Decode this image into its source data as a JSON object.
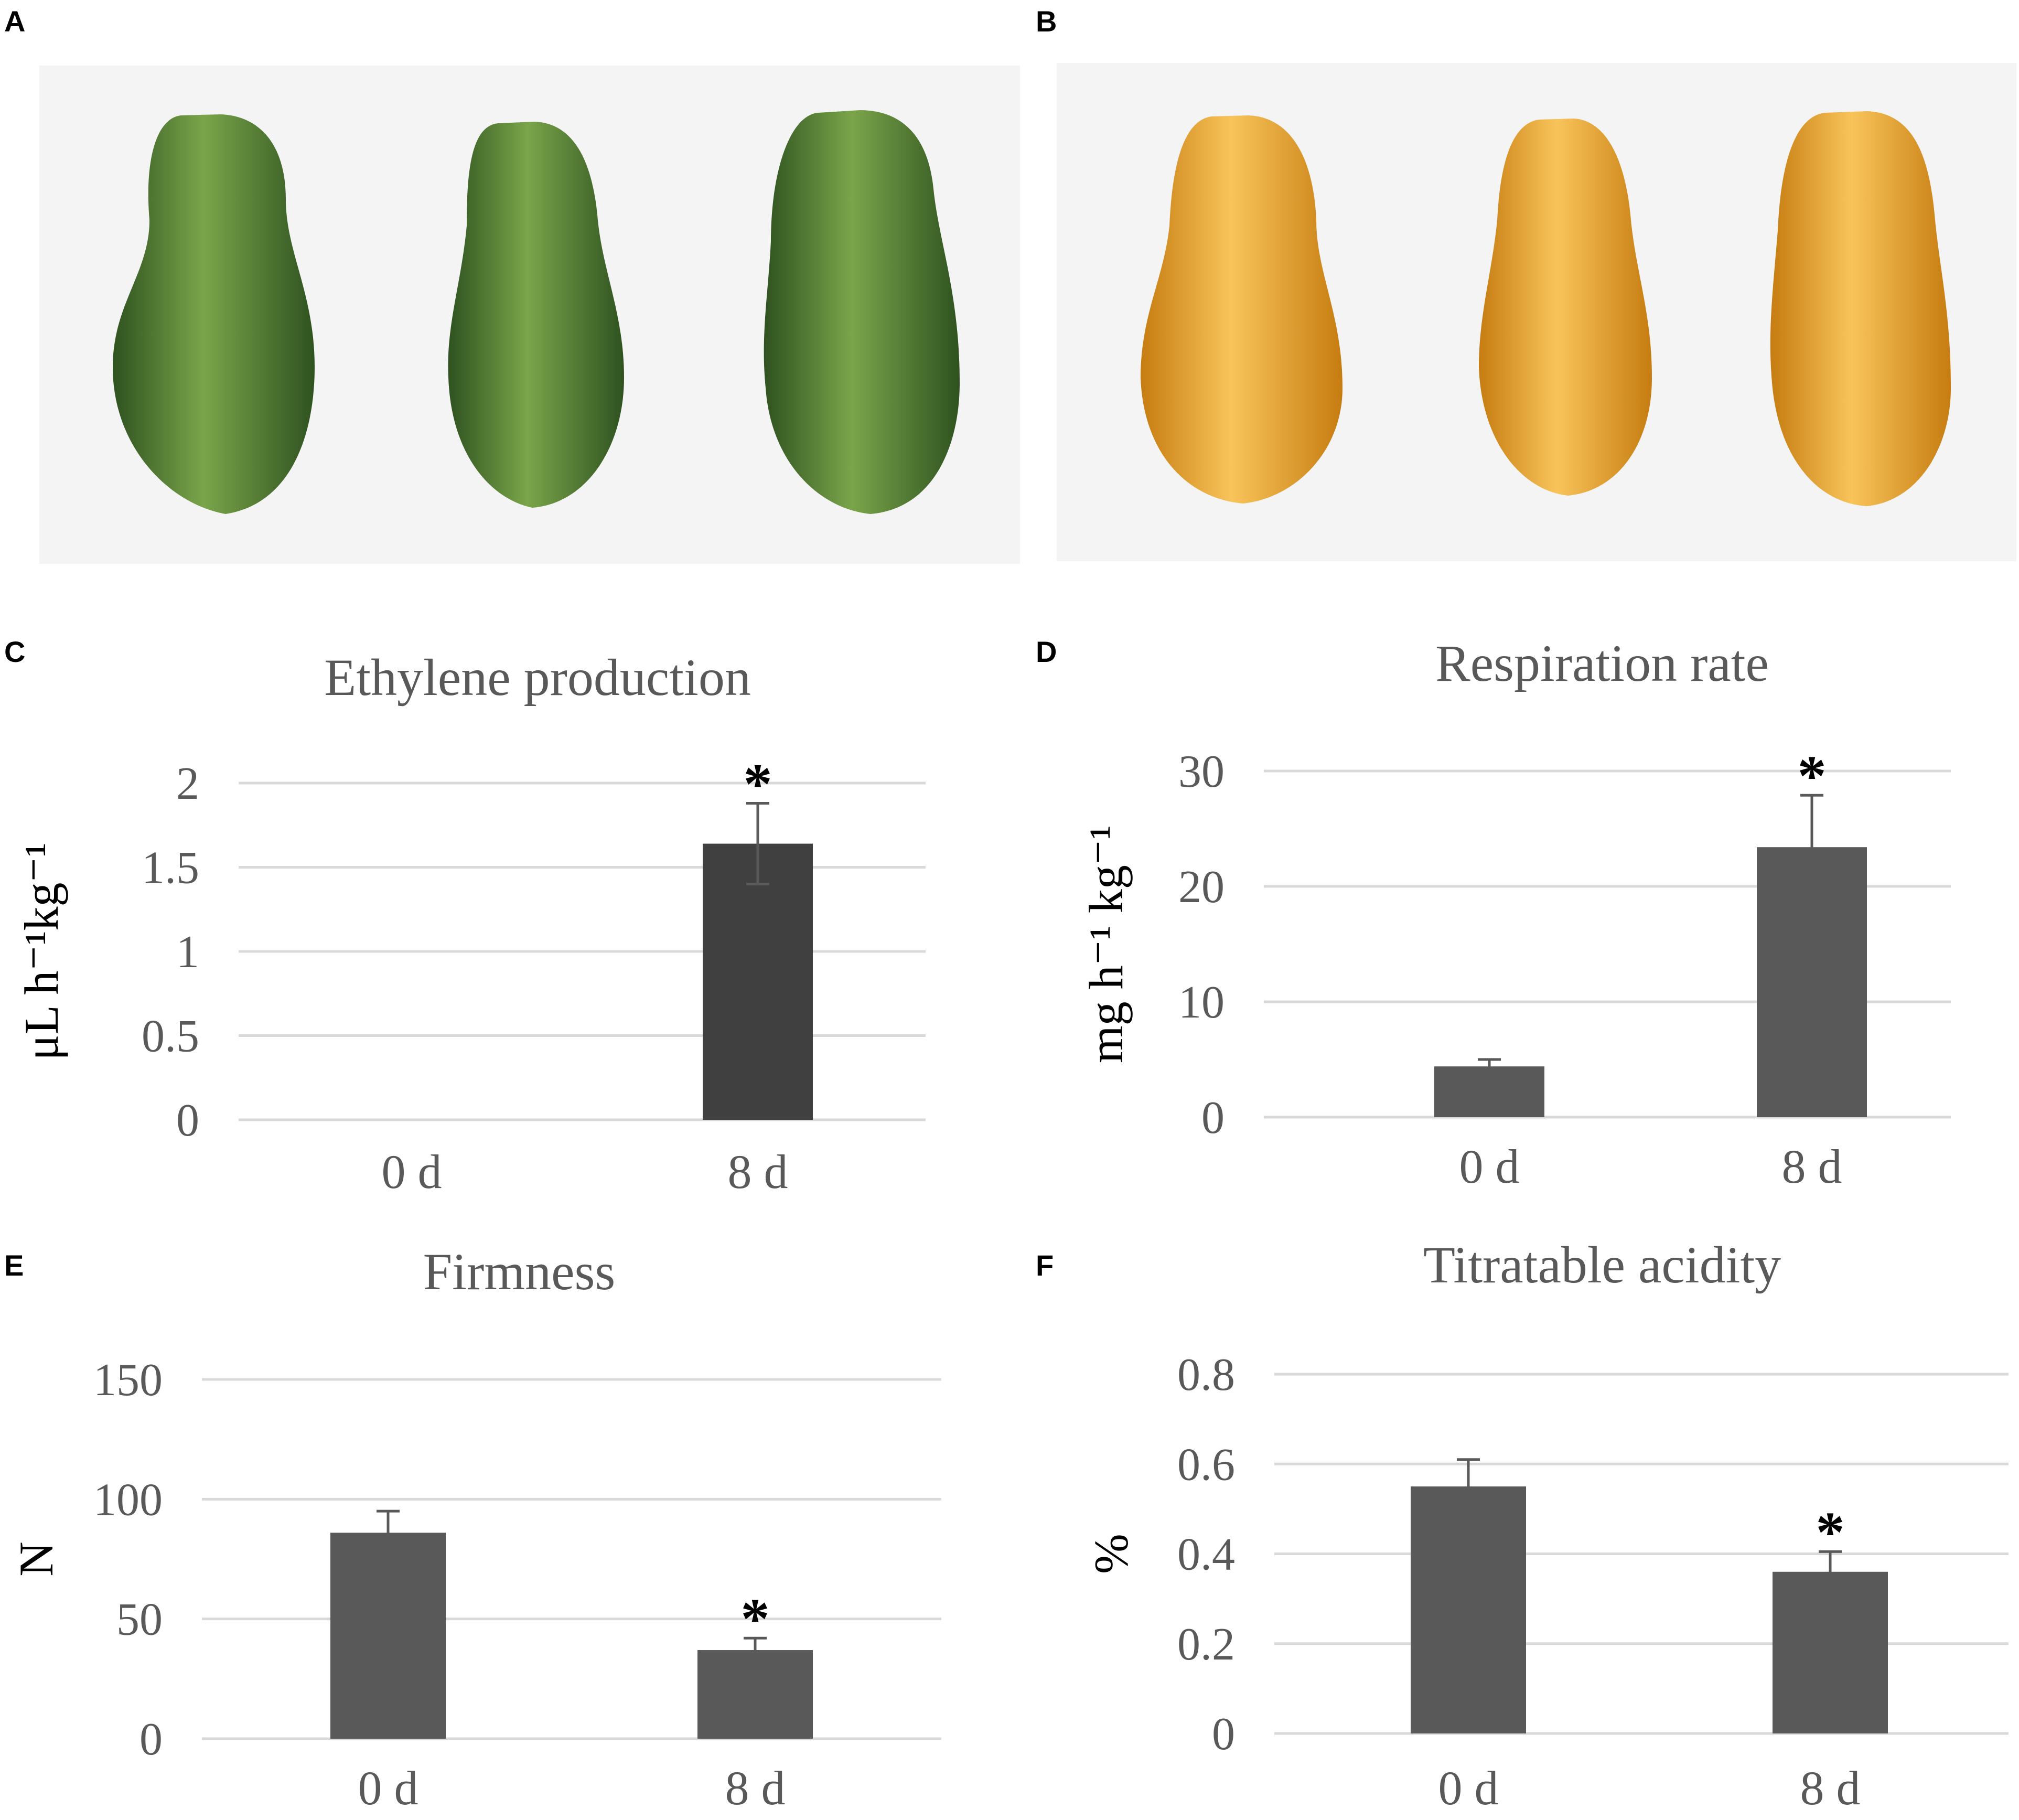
{
  "panels": {
    "a": "A",
    "b": "B",
    "c": "C",
    "d": "D",
    "e": "E",
    "f": "F"
  },
  "photos": {
    "a": {
      "fruit_color": "#4c7a2c",
      "fruit_highlight": "#7aa54a",
      "fruit_shadow": "#2f5220",
      "count": 3
    },
    "b": {
      "fruit_color": "#efa51c",
      "fruit_highlight": "#f8c45a",
      "fruit_shadow": "#c67c10",
      "count": 3
    }
  },
  "colors": {
    "bar": "#595959",
    "bar_dark": "#404040",
    "grid": "#d9d9d9",
    "title": "#595959",
    "tick": "#595959",
    "axis_label": "#000000",
    "star": "#000000",
    "error": "#595959"
  },
  "chart_data": [
    {
      "type": "bar",
      "id": "c",
      "title": "Ethylene production",
      "ylabel": "μL h⁻¹kg⁻¹",
      "categories": [
        "0 d",
        "8 d"
      ],
      "values": [
        0,
        1.64
      ],
      "errors": [
        0,
        0.24
      ],
      "significant": [
        false,
        true
      ],
      "yticks": [
        "0",
        "0.5",
        "1",
        "1.5",
        "2"
      ],
      "ylim": [
        0,
        2
      ],
      "bar_color": "#404040",
      "star": "*"
    },
    {
      "type": "bar",
      "id": "d",
      "title": "Respiration rate",
      "ylabel": "mg h⁻¹ kg⁻¹",
      "categories": [
        "0 d",
        "8 d"
      ],
      "values": [
        4.4,
        23.4
      ],
      "errors": [
        0.6,
        4.5
      ],
      "significant": [
        false,
        true
      ],
      "yticks": [
        "0",
        "10",
        "20",
        "30"
      ],
      "ylim": [
        0,
        30
      ],
      "bar_color": "#595959",
      "star": "*"
    },
    {
      "type": "bar",
      "id": "e",
      "title": "Firmness",
      "ylabel": "N",
      "categories": [
        "0 d",
        "8 d"
      ],
      "values": [
        86,
        37
      ],
      "errors": [
        9,
        5
      ],
      "significant": [
        false,
        true
      ],
      "yticks": [
        "0",
        "50",
        "100",
        "150"
      ],
      "ylim": [
        0,
        150
      ],
      "bar_color": "#595959",
      "star": "*"
    },
    {
      "type": "bar",
      "id": "f",
      "title": "Titratable acidity",
      "ylabel": "%",
      "categories": [
        "0 d",
        "8 d"
      ],
      "values": [
        0.55,
        0.36
      ],
      "errors": [
        0.06,
        0.045
      ],
      "significant": [
        false,
        true
      ],
      "yticks": [
        "0",
        "0.2",
        "0.4",
        "0.6",
        "0.8"
      ],
      "ylim": [
        0,
        0.8
      ],
      "bar_color": "#595959",
      "star": "*"
    }
  ]
}
